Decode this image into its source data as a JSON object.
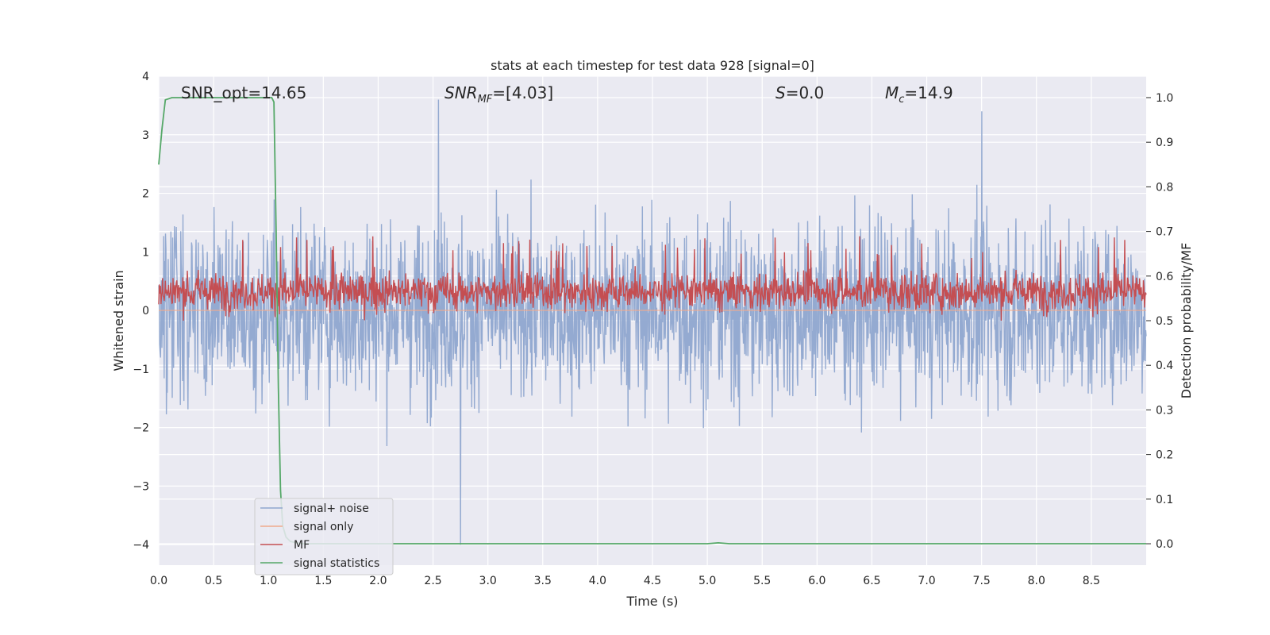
{
  "chart_data": {
    "type": "line",
    "title": "stats at each timestep for test data 928 [signal=0]",
    "xlabel": "Time (s)",
    "ylabel": "Whitened strain",
    "y2label": "Detection probability/MF",
    "xlim": [
      0,
      9.0
    ],
    "ylim": [
      -4.35,
      4.0
    ],
    "y2lim": [
      -0.048,
      1.048
    ],
    "x_ticks": [
      "0.0",
      "0.5",
      "1.0",
      "1.5",
      "2.0",
      "2.5",
      "3.0",
      "3.5",
      "4.0",
      "4.5",
      "5.0",
      "5.5",
      "6.0",
      "6.5",
      "7.0",
      "7.5",
      "8.0",
      "8.5"
    ],
    "y_ticks": [
      {
        "value": 4,
        "label": "4"
      },
      {
        "value": 3,
        "label": "3"
      },
      {
        "value": 2,
        "label": "2"
      },
      {
        "value": 1,
        "label": "1"
      },
      {
        "value": 0,
        "label": "0"
      },
      {
        "value": -1,
        "label": "−1"
      },
      {
        "value": -2,
        "label": "−2"
      },
      {
        "value": -3,
        "label": "−3"
      },
      {
        "value": -4,
        "label": "−4"
      }
    ],
    "y2_ticks": [
      "0.0",
      "0.1",
      "0.2",
      "0.3",
      "0.4",
      "0.5",
      "0.6",
      "0.7",
      "0.8",
      "0.9",
      "1.0"
    ],
    "grid": true,
    "legend_position": "lower-left",
    "annotations": {
      "snr_opt": "SNR_opt=14.65",
      "snr_mf_main": "SNR",
      "snr_mf_sub": "MF",
      "snr_mf_rest": "=[4.03]",
      "s_main": "S",
      "s_rest": "=0.0",
      "mc_main": "M",
      "mc_sub": "c",
      "mc_rest": "=14.9"
    },
    "series": [
      {
        "name": "signal+ noise",
        "color": "#8fa6cf",
        "axis": "left",
        "approx_range": [
          -4.0,
          3.6
        ],
        "typical_band": [
          -1.7,
          1.7
        ],
        "peaks": [
          {
            "x": 2.55,
            "y": 3.6
          },
          {
            "x": 2.75,
            "y": -4.0
          },
          {
            "x": 7.5,
            "y": 3.4
          }
        ]
      },
      {
        "name": "signal only",
        "color": "#f0a98c",
        "axis": "left",
        "values": [
          0,
          0
        ]
      },
      {
        "name": "MF",
        "color": "#c44e52",
        "axis": "right",
        "approx_range": [
          0.5,
          0.69
        ],
        "typical_band": [
          0.52,
          0.62
        ]
      },
      {
        "name": "signal statistics",
        "color": "#55a868",
        "axis": "right",
        "x": [
          0.0,
          0.03,
          0.06,
          0.12,
          0.3,
          0.6,
          0.9,
          1.03,
          1.05,
          1.07,
          1.09,
          1.11,
          1.13,
          1.16,
          1.2,
          1.3,
          2.0,
          3.0,
          4.0,
          5.0,
          5.1,
          5.2,
          6.0,
          7.0,
          8.0,
          9.0
        ],
        "y": [
          0.85,
          0.93,
          0.995,
          1.0,
          1.0,
          1.0,
          1.0,
          1.0,
          0.99,
          0.7,
          0.35,
          0.12,
          0.04,
          0.015,
          0.005,
          0.0,
          0.0,
          0.0,
          0.0,
          0.0,
          0.002,
          0.0,
          0.0,
          0.0,
          0.0,
          0.0
        ]
      }
    ]
  }
}
